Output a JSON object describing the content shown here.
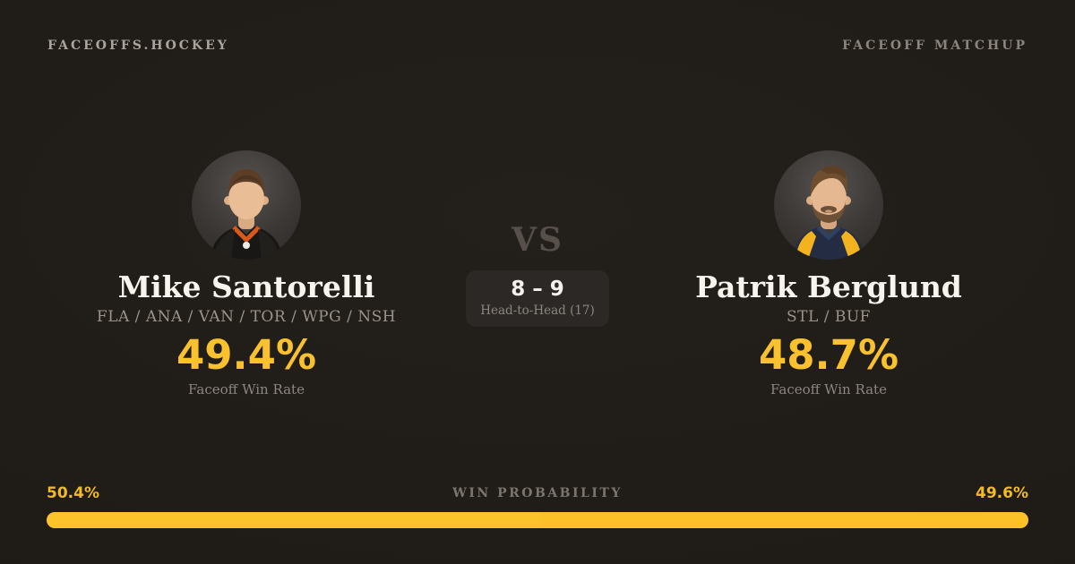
{
  "header": {
    "brand": "FACEOFFS.HOCKEY",
    "page_label": "FACEOFF MATCHUP"
  },
  "players": {
    "left": {
      "name": "Mike Santorelli",
      "teams": "FLA / ANA / VAN / TOR / WPG / NSH",
      "faceoff_win_rate": "49.4%",
      "faceoff_win_rate_label": "Faceoff Win Rate"
    },
    "right": {
      "name": "Patrik Berglund",
      "teams": "STL / BUF",
      "faceoff_win_rate": "48.7%",
      "faceoff_win_rate_label": "Faceoff Win Rate"
    }
  },
  "matchup": {
    "vs_label": "VS",
    "head_to_head_score": "8 – 9",
    "head_to_head_label": "Head-to-Head (17)"
  },
  "win_probability": {
    "title": "WIN PROBABILITY",
    "left_label": "50.4%",
    "right_label": "49.6%",
    "left_value": 50.4,
    "right_value": 49.6
  },
  "colors": {
    "background": "#1e1a16",
    "accent_gold": "#fcc32a",
    "text_primary": "#f7f3ed",
    "text_muted": "#9c948a",
    "vs_text": "#57504a",
    "pill_background": "#2b2826"
  }
}
